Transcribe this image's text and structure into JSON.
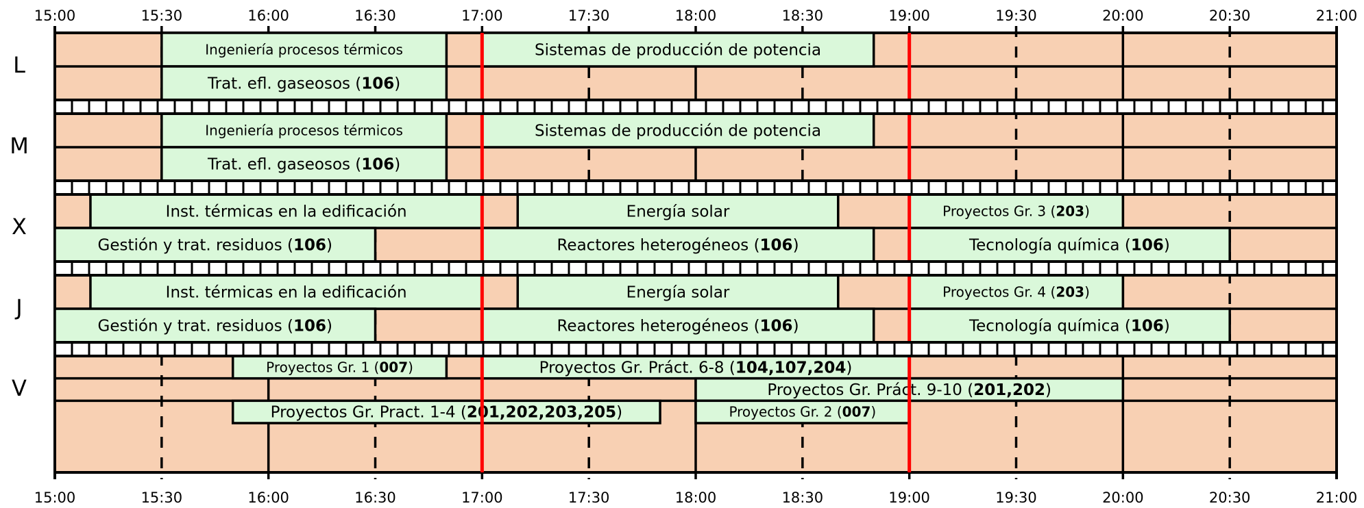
{
  "time_ticks": [
    "15:00",
    "15:30",
    "16:00",
    "16:30",
    "17:00",
    "17:30",
    "18:00",
    "18:30",
    "19:00",
    "19:30",
    "20:00",
    "20:30",
    "21:00"
  ],
  "colors": {
    "background": "#f8d0b3",
    "block": "#daf8da",
    "stroke": "#000000",
    "marker": "#ff0000",
    "hatch": "#ffffff"
  },
  "marker_times": [
    "17:00",
    "19:00"
  ],
  "days": [
    {
      "label": "L",
      "rows": [
        {
          "blocks": [
            {
              "start": "15:30",
              "end": "16:50",
              "parts": [
                {
                  "t": "Ingeniería procesos térmicos"
                }
              ],
              "size": "small"
            },
            {
              "start": "17:00",
              "end": "18:50",
              "parts": [
                {
                  "t": "Sistemas de producción de potencia"
                }
              ]
            }
          ]
        },
        {
          "blocks": [
            {
              "start": "15:30",
              "end": "16:50",
              "parts": [
                {
                  "t": "Trat. efl. gaseosos ("
                },
                {
                  "t": "106",
                  "b": true
                },
                {
                  "t": ")"
                }
              ]
            }
          ]
        }
      ]
    },
    {
      "label": "M",
      "rows": [
        {
          "blocks": [
            {
              "start": "15:30",
              "end": "16:50",
              "parts": [
                {
                  "t": "Ingeniería procesos térmicos"
                }
              ],
              "size": "small"
            },
            {
              "start": "17:00",
              "end": "18:50",
              "parts": [
                {
                  "t": "Sistemas de producción de potencia"
                }
              ]
            }
          ]
        },
        {
          "blocks": [
            {
              "start": "15:30",
              "end": "16:50",
              "parts": [
                {
                  "t": "Trat. efl. gaseosos ("
                },
                {
                  "t": "106",
                  "b": true
                },
                {
                  "t": ")"
                }
              ]
            }
          ]
        }
      ]
    },
    {
      "label": "X",
      "rows": [
        {
          "blocks": [
            {
              "start": "15:10",
              "end": "17:00",
              "parts": [
                {
                  "t": "Inst. térmicas en la edificación"
                }
              ]
            },
            {
              "start": "17:10",
              "end": "18:40",
              "parts": [
                {
                  "t": "Energía solar"
                }
              ]
            },
            {
              "start": "19:00",
              "end": "20:00",
              "parts": [
                {
                  "t": "Proyectos Gr. 3 ("
                },
                {
                  "t": "203",
                  "b": true
                },
                {
                  "t": ")"
                }
              ],
              "size": "small"
            }
          ]
        },
        {
          "blocks": [
            {
              "start": "15:00",
              "end": "16:30",
              "parts": [
                {
                  "t": "Gestión y trat. residuos  ("
                },
                {
                  "t": "106",
                  "b": true
                },
                {
                  "t": ")"
                }
              ]
            },
            {
              "start": "17:00",
              "end": "18:50",
              "parts": [
                {
                  "t": "Reactores heterogéneos ("
                },
                {
                  "t": "106",
                  "b": true
                },
                {
                  "t": ")"
                }
              ]
            },
            {
              "start": "19:00",
              "end": "20:30",
              "parts": [
                {
                  "t": "Tecnología química ("
                },
                {
                  "t": "106",
                  "b": true
                },
                {
                  "t": ")"
                }
              ]
            }
          ]
        }
      ]
    },
    {
      "label": "J",
      "rows": [
        {
          "blocks": [
            {
              "start": "15:10",
              "end": "17:00",
              "parts": [
                {
                  "t": "Inst. térmicas en la edificación"
                }
              ]
            },
            {
              "start": "17:10",
              "end": "18:40",
              "parts": [
                {
                  "t": "Energía solar"
                }
              ]
            },
            {
              "start": "19:00",
              "end": "20:00",
              "parts": [
                {
                  "t": "Proyectos Gr. 4 ("
                },
                {
                  "t": "203",
                  "b": true
                },
                {
                  "t": ")"
                }
              ],
              "size": "small"
            }
          ]
        },
        {
          "blocks": [
            {
              "start": "15:00",
              "end": "16:30",
              "parts": [
                {
                  "t": "Gestión y trat. residuos  ("
                },
                {
                  "t": "106",
                  "b": true
                },
                {
                  "t": ")"
                }
              ]
            },
            {
              "start": "17:00",
              "end": "18:50",
              "parts": [
                {
                  "t": "Reactores heterogéneos ("
                },
                {
                  "t": "106",
                  "b": true
                },
                {
                  "t": ")"
                }
              ]
            },
            {
              "start": "19:00",
              "end": "20:30",
              "parts": [
                {
                  "t": "Tecnología química ("
                },
                {
                  "t": "106",
                  "b": true
                },
                {
                  "t": ")"
                }
              ]
            }
          ]
        }
      ]
    },
    {
      "label": "V",
      "rows": [
        {
          "blocks": [
            {
              "start": "15:50",
              "end": "16:50",
              "parts": [
                {
                  "t": "Proyectos Gr. 1 ("
                },
                {
                  "t": "007",
                  "b": true
                },
                {
                  "t": ")"
                }
              ],
              "size": "small"
            },
            {
              "start": "17:00",
              "end": "19:00",
              "parts": [
                {
                  "t": "Proyectos Gr. Práct. 6-8 ("
                },
                {
                  "t": "104,107,204",
                  "b": true
                },
                {
                  "t": ")"
                }
              ]
            }
          ]
        },
        {
          "blocks": [
            {
              "start": "18:00",
              "end": "20:00",
              "parts": [
                {
                  "t": "Proyectos Gr. Práct. 9-10 ("
                },
                {
                  "t": "201,202",
                  "b": true
                },
                {
                  "t": ")"
                }
              ]
            }
          ]
        },
        {
          "blocks": [
            {
              "start": "15:50",
              "end": "17:50",
              "parts": [
                {
                  "t": "Proyectos Gr. Pract. 1-4 ("
                },
                {
                  "t": "201,202,203,205",
                  "b": true
                },
                {
                  "t": ")"
                }
              ]
            },
            {
              "start": "18:00",
              "end": "19:00",
              "parts": [
                {
                  "t": "Proyectos Gr. 2 ("
                },
                {
                  "t": "007",
                  "b": true
                },
                {
                  "t": ")"
                }
              ],
              "size": "small"
            }
          ]
        }
      ]
    }
  ]
}
